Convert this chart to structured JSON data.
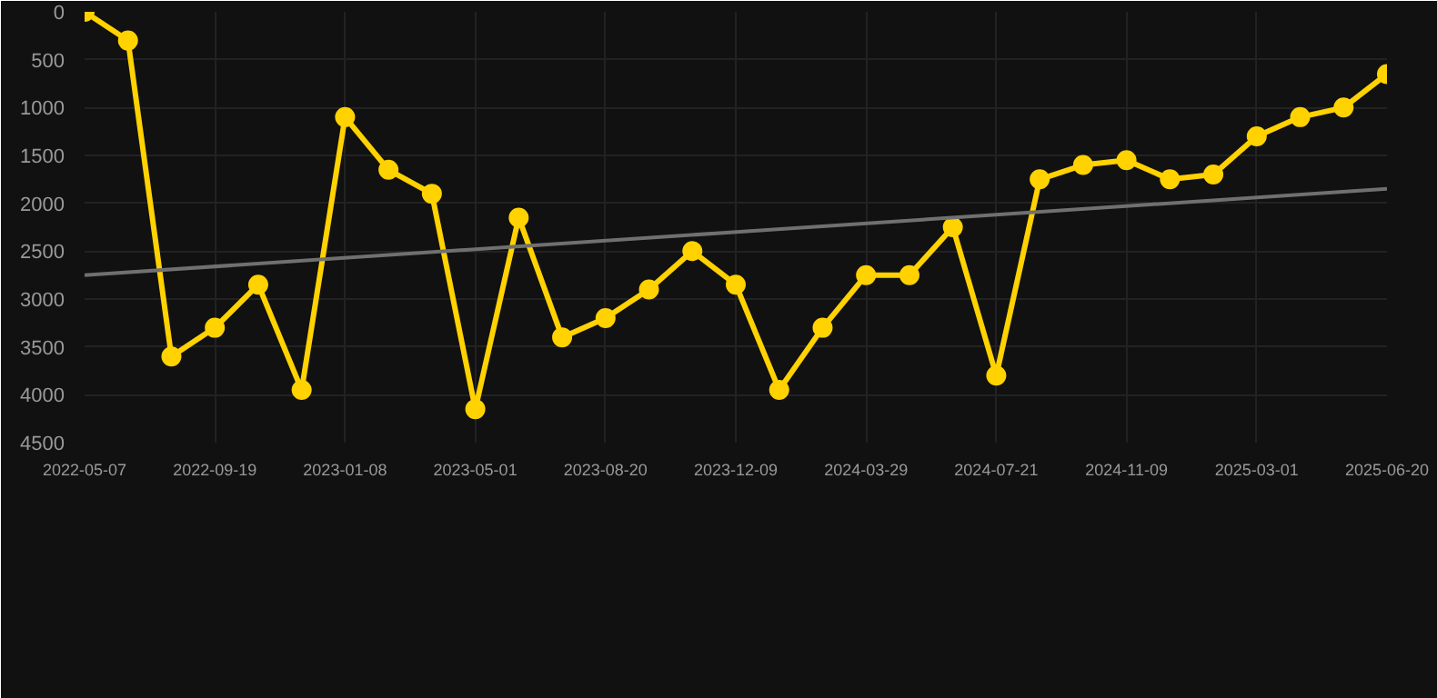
{
  "chart_data": {
    "type": "line",
    "categories": [
      "2022-05-07",
      null,
      null,
      "2022-09-19",
      null,
      null,
      "2023-01-08",
      null,
      null,
      "2023-05-01",
      null,
      null,
      "2023-08-20",
      null,
      null,
      "2023-12-09",
      null,
      null,
      "2024-03-29",
      null,
      null,
      "2024-07-21",
      null,
      null,
      "2024-11-09",
      null,
      null,
      "2025-03-01",
      null,
      null,
      "2025-06-20"
    ],
    "series": [
      {
        "color": "#ffd200",
        "marker": "circle",
        "values": [
          0,
          300,
          3600,
          3300,
          2850,
          3950,
          1100,
          1650,
          1900,
          4150,
          2150,
          3400,
          3200,
          2900,
          2500,
          2850,
          3950,
          3300,
          2750,
          2750,
          2250,
          3800,
          1750,
          1600,
          1550,
          1750,
          1700,
          1300,
          1100,
          1000,
          650
        ]
      },
      {
        "color": "#707070",
        "marker": "none",
        "values": [
          2750,
          null,
          null,
          null,
          null,
          null,
          null,
          null,
          null,
          null,
          null,
          null,
          null,
          null,
          null,
          null,
          null,
          null,
          null,
          null,
          null,
          null,
          null,
          null,
          null,
          null,
          null,
          null,
          null,
          null,
          1850
        ]
      }
    ],
    "ylim": [
      4500,
      0
    ],
    "yticks": [
      0,
      500,
      1000,
      1500,
      2000,
      2500,
      3000,
      3500,
      4000,
      4500
    ],
    "grid": true,
    "line_style": "solid"
  }
}
